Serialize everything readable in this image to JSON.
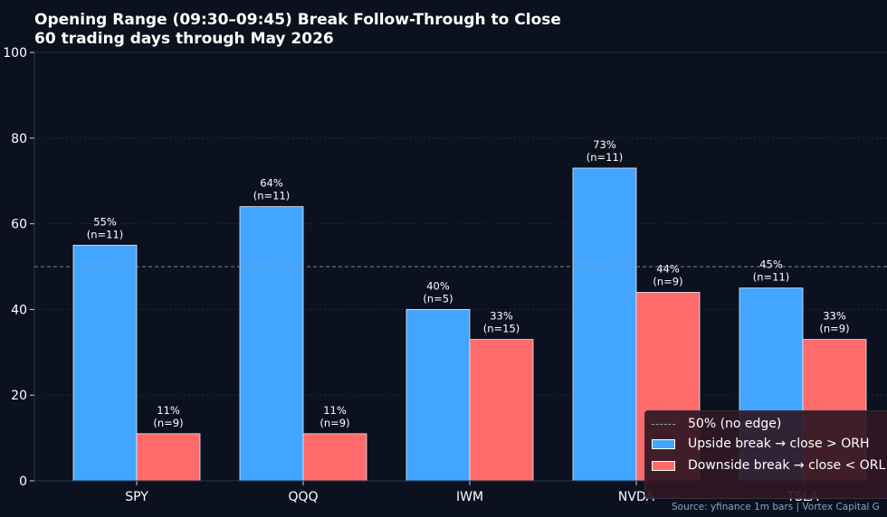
{
  "title_lines": [
    "Opening Range (09:30–09:45) Break Follow-Through to Close",
    "60 trading days through May 2026"
  ],
  "source": "Source: yfinance 1m bars  |  Vortex Capital G",
  "colors": {
    "background": "#0b111e",
    "upside": "#42a5ff",
    "downside": "#ff6b6b",
    "reference_line": "#9aa0aa"
  },
  "legend": {
    "reference": "50% (no edge)",
    "upside": "Upside break → close > ORH",
    "downside": "Downside break → close < ORL"
  },
  "chart_data": {
    "type": "bar",
    "categories": [
      "SPY",
      "QQQ",
      "IWM",
      "NVDA",
      "TSLA"
    ],
    "series": [
      {
        "name": "Upside break → close > ORH",
        "values": [
          55,
          64,
          40,
          73,
          45
        ],
        "labels": [
          "55%\n(n=11)",
          "64%\n(n=11)",
          "40%\n(n=5)",
          "73%\n(n=11)",
          "45%\n(n=11)"
        ]
      },
      {
        "name": "Downside break → close < ORL",
        "values": [
          11,
          11,
          33,
          44,
          33
        ],
        "labels": [
          "11%\n(n=9)",
          "11%\n(n=9)",
          "33%\n(n=15)",
          "44%\n(n=9)",
          "33%\n(n=9)"
        ]
      }
    ],
    "reference_line": {
      "value": 50,
      "label": "50% (no edge)"
    },
    "ylim": [
      0,
      100
    ],
    "yticks": [
      0,
      20,
      40,
      60,
      80,
      100
    ],
    "grid": true,
    "legend_position": "bottom-right"
  }
}
